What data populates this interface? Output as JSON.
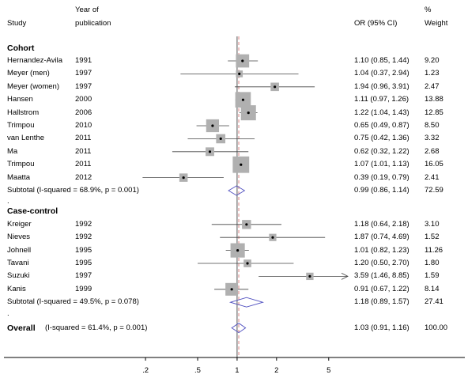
{
  "header": {
    "study": "Study",
    "year_line1": "Year of",
    "year_line2": "publication",
    "or": "OR (95% CI)",
    "weight_line1": "%",
    "weight_line2": "Weight"
  },
  "rows": [
    {
      "kind": "group",
      "label": "Cohort"
    },
    {
      "kind": "study",
      "study": "Hernandez-Avila",
      "year": "1991",
      "or": 1.1,
      "lo": 0.85,
      "hi": 1.44,
      "ci": "1.10 (0.85, 1.44)",
      "weight": "9.20",
      "w": 9.2
    },
    {
      "kind": "study",
      "study": "Meyer (men)",
      "year": "1997",
      "or": 1.04,
      "lo": 0.37,
      "hi": 2.94,
      "ci": "1.04 (0.37, 2.94)",
      "weight": "1.23",
      "w": 1.23
    },
    {
      "kind": "study",
      "study": "Meyer (women)",
      "year": "1997",
      "or": 1.94,
      "lo": 0.96,
      "hi": 3.91,
      "ci": "1.94 (0.96, 3.91)",
      "weight": "2.47",
      "w": 2.47
    },
    {
      "kind": "study",
      "study": "Hansen",
      "year": "2000",
      "or": 1.11,
      "lo": 0.97,
      "hi": 1.26,
      "ci": "1.11 (0.97, 1.26)",
      "weight": "13.88",
      "w": 13.88
    },
    {
      "kind": "study",
      "study": "Hallstrom",
      "year": "2006",
      "or": 1.22,
      "lo": 1.04,
      "hi": 1.43,
      "ci": "1.22 (1.04, 1.43)",
      "weight": "12.85",
      "w": 12.85
    },
    {
      "kind": "study",
      "study": "Trimpou",
      "year": "2010",
      "or": 0.65,
      "lo": 0.49,
      "hi": 0.87,
      "ci": "0.65 (0.49, 0.87)",
      "weight": "8.50",
      "w": 8.5
    },
    {
      "kind": "study",
      "study": "van Lenthe",
      "year": "2011",
      "or": 0.75,
      "lo": 0.42,
      "hi": 1.36,
      "ci": "0.75 (0.42, 1.36)",
      "weight": "3.32",
      "w": 3.32
    },
    {
      "kind": "study",
      "study": "Ma",
      "year": "2011",
      "or": 0.62,
      "lo": 0.32,
      "hi": 1.22,
      "ci": "0.62 (0.32, 1.22)",
      "weight": "2.68",
      "w": 2.68
    },
    {
      "kind": "study",
      "study": "Trimpou",
      "year": "2011",
      "or": 1.07,
      "lo": 1.01,
      "hi": 1.13,
      "ci": "1.07 (1.01, 1.13)",
      "weight": "16.05",
      "w": 16.05
    },
    {
      "kind": "study",
      "study": "Maatta",
      "year": "2012",
      "or": 0.39,
      "lo": 0.19,
      "hi": 0.79,
      "ci": "0.39 (0.19, 0.79)",
      "weight": "2.41",
      "w": 2.41
    },
    {
      "kind": "subtotal",
      "label": "Subtotal  (I-squared = 68.9%, p = 0.001)",
      "or": 0.99,
      "lo": 0.86,
      "hi": 1.14,
      "ci": "0.99 (0.86, 1.14)",
      "weight": "72.59"
    },
    {
      "kind": "dot",
      "label": "."
    },
    {
      "kind": "group",
      "label": "Case-control"
    },
    {
      "kind": "study",
      "study": "Kreiger",
      "year": "1992",
      "or": 1.18,
      "lo": 0.64,
      "hi": 2.18,
      "ci": "1.18 (0.64, 2.18)",
      "weight": "3.10",
      "w": 3.1
    },
    {
      "kind": "study",
      "study": "Nieves",
      "year": "1992",
      "or": 1.87,
      "lo": 0.74,
      "hi": 4.69,
      "ci": "1.87 (0.74, 4.69)",
      "weight": "1.52",
      "w": 1.52
    },
    {
      "kind": "study",
      "study": "Johnell",
      "year": "1995",
      "or": 1.01,
      "lo": 0.82,
      "hi": 1.23,
      "ci": "1.01 (0.82, 1.23)",
      "weight": "11.26",
      "w": 11.26
    },
    {
      "kind": "study",
      "study": "Tavani",
      "year": "1995",
      "or": 1.2,
      "lo": 0.5,
      "hi": 2.7,
      "ci": "1.20 (0.50, 2.70)",
      "weight": "1.80",
      "w": 1.8
    },
    {
      "kind": "study",
      "study": "Suzuki",
      "year": "1997",
      "or": 3.59,
      "lo": 1.46,
      "hi": 8.85,
      "ci": "3.59 (1.46, 8.85)",
      "weight": "1.59",
      "w": 1.59,
      "arrow": true
    },
    {
      "kind": "study",
      "study": "Kanis",
      "year": "1999",
      "or": 0.91,
      "lo": 0.67,
      "hi": 1.22,
      "ci": "0.91 (0.67, 1.22)",
      "weight": "8.14",
      "w": 8.14
    },
    {
      "kind": "subtotal",
      "label": "Subtotal  (I-squared = 49.5%, p = 0.078)",
      "or": 1.18,
      "lo": 0.89,
      "hi": 1.57,
      "ci": "1.18 (0.89, 1.57)",
      "weight": "27.41"
    },
    {
      "kind": "dot",
      "label": "."
    },
    {
      "kind": "overall",
      "label_bold": "Overall",
      "label": "(I-squared = 61.4%, p = 0.001)",
      "or": 1.03,
      "lo": 0.91,
      "hi": 1.16,
      "ci": "1.03 (0.91, 1.16)",
      "weight": "100.00"
    }
  ],
  "chart_data": {
    "type": "forest",
    "scale": "log",
    "xlim": [
      0.16,
      7.0
    ],
    "x_ticks": [
      ".2",
      ".5",
      "1",
      "2",
      "5"
    ],
    "x_tick_values": [
      0.2,
      0.5,
      1,
      2,
      5
    ],
    "null_line": 1,
    "overall_or": 1.03,
    "colors": {
      "box": "#b0b0b0",
      "null_line": "#555555",
      "overall_line": "#d98080",
      "diamond": "#5050c0",
      "ci_line": "#444444"
    }
  }
}
